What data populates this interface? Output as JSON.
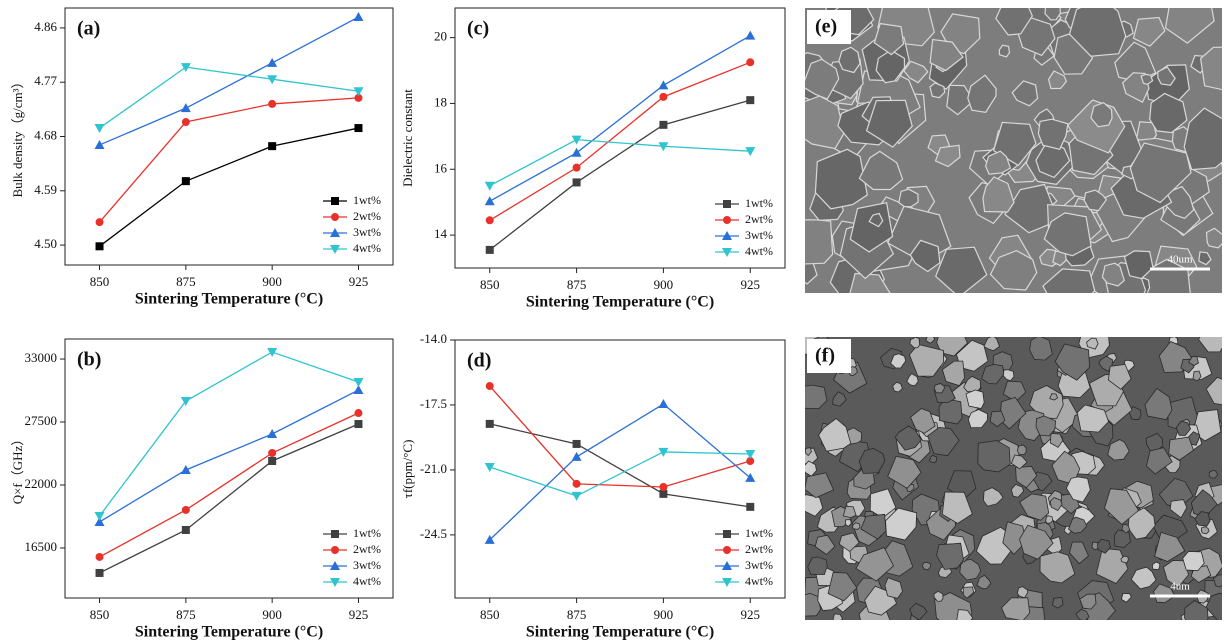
{
  "chart_data": [
    {
      "type": "line",
      "panel": "(a)",
      "x_label": "Sintering Temperature (°C)",
      "y_label": "Bulk density（g/cm³）",
      "x": [
        850,
        875,
        900,
        925
      ],
      "xlim": [
        840,
        935
      ],
      "xticks": [
        850,
        875,
        900,
        925
      ],
      "ylim": [
        4.467,
        4.893
      ],
      "yticks": [
        {
          "value": 4.5,
          "label": "4.50"
        },
        4.59,
        4.68,
        4.77,
        4.86
      ],
      "grid": false,
      "legend": "lower right",
      "series": [
        {
          "name": "1wt%",
          "color": "#000000",
          "marker": "square",
          "values": [
            4.498,
            4.606,
            4.664,
            4.694
          ]
        },
        {
          "name": "2wt%",
          "color": "#e8312a",
          "marker": "circle",
          "values": [
            4.538,
            4.704,
            4.734,
            4.744
          ]
        },
        {
          "name": "3wt%",
          "color": "#2a6fd6",
          "marker": "triangle-up",
          "values": [
            4.666,
            4.727,
            4.802,
            4.878
          ]
        },
        {
          "name": "4wt%",
          "color": "#2fc4cf",
          "marker": "triangle-down",
          "values": [
            4.694,
            4.795,
            4.775,
            4.755
          ]
        }
      ]
    },
    {
      "type": "line",
      "panel": "(b)",
      "x_label": "Sintering Temperature (°C)",
      "y_label": "Q×f（GHz）",
      "x": [
        850,
        875,
        900,
        925
      ],
      "xlim": [
        840,
        935
      ],
      "xticks": [
        850,
        875,
        900,
        925
      ],
      "ylim": [
        12130,
        34750
      ],
      "yticks": [
        16500,
        22000,
        27500,
        33000
      ],
      "grid": false,
      "legend": "lower right",
      "series": [
        {
          "name": "1wt%",
          "color": "#404040",
          "marker": "square",
          "values": [
            14317,
            18071,
            24095,
            27325
          ]
        },
        {
          "name": "2wt%",
          "color": "#e8312a",
          "marker": "circle",
          "values": [
            15714,
            19817,
            24793,
            28285
          ]
        },
        {
          "name": "3wt%",
          "color": "#2a6fd6",
          "marker": "triangle-up",
          "values": [
            18771,
            23310,
            26453,
            30294
          ]
        },
        {
          "name": "4wt%",
          "color": "#2fc4cf",
          "marker": "triangle-down",
          "values": [
            19294,
            29334,
            33611,
            30992
          ]
        }
      ]
    },
    {
      "type": "line",
      "panel": "(c)",
      "x_label": "Sintering Temperature (°C)",
      "y_label": "Dielectric constant",
      "x": [
        850,
        875,
        900,
        925
      ],
      "xlim": [
        840,
        935
      ],
      "xticks": [
        850,
        875,
        900,
        925
      ],
      "ylim": [
        13,
        20.9
      ],
      "yticks": [
        14,
        16,
        18,
        20
      ],
      "grid": false,
      "legend": "lower right",
      "series": [
        {
          "name": "1wt%",
          "color": "#404040",
          "marker": "square",
          "values": [
            13.55,
            15.6,
            17.35,
            18.1
          ]
        },
        {
          "name": "2wt%",
          "color": "#e8312a",
          "marker": "circle",
          "values": [
            14.45,
            16.05,
            18.2,
            19.25
          ]
        },
        {
          "name": "3wt%",
          "color": "#2a6fd6",
          "marker": "triangle-up",
          "values": [
            15.03,
            16.5,
            18.55,
            20.06
          ]
        },
        {
          "name": "4wt%",
          "color": "#2fc4cf",
          "marker": "triangle-down",
          "values": [
            15.5,
            16.9,
            16.7,
            16.55
          ]
        }
      ]
    },
    {
      "type": "line",
      "panel": "(d)",
      "x_label": "Sintering Temperature (°C)",
      "y_label": "τf(ppm/°C)",
      "x": [
        850,
        875,
        900,
        925
      ],
      "xlim": [
        840,
        935
      ],
      "xticks": [
        850,
        875,
        900,
        925
      ],
      "ylim": [
        -27.9,
        -14
      ],
      "yticks": [
        {
          "value": -14,
          "label": "-14.0"
        },
        -17.5,
        {
          "value": -21,
          "label": "-21.0"
        },
        -24.5
      ],
      "grid": false,
      "legend": "lower right",
      "series": [
        {
          "name": "1wt%",
          "color": "#404040",
          "marker": "square",
          "values": [
            -18.52,
            -19.6,
            -22.29,
            -22.99
          ]
        },
        {
          "name": "2wt%",
          "color": "#e8312a",
          "marker": "circle",
          "values": [
            -16.48,
            -21.75,
            -21.92,
            -20.52
          ]
        },
        {
          "name": "3wt%",
          "color": "#2a6fd6",
          "marker": "triangle-up",
          "values": [
            -24.77,
            -20.3,
            -17.45,
            -21.43
          ]
        },
        {
          "name": "4wt%",
          "color": "#2fc4cf",
          "marker": "triangle-down",
          "values": [
            -20.84,
            -22.4,
            -20.03,
            -20.14
          ]
        }
      ]
    }
  ],
  "images": [
    {
      "label": "(e)",
      "scale_bar": "40um"
    },
    {
      "label": "(f)",
      "scale_bar": "4um"
    }
  ]
}
